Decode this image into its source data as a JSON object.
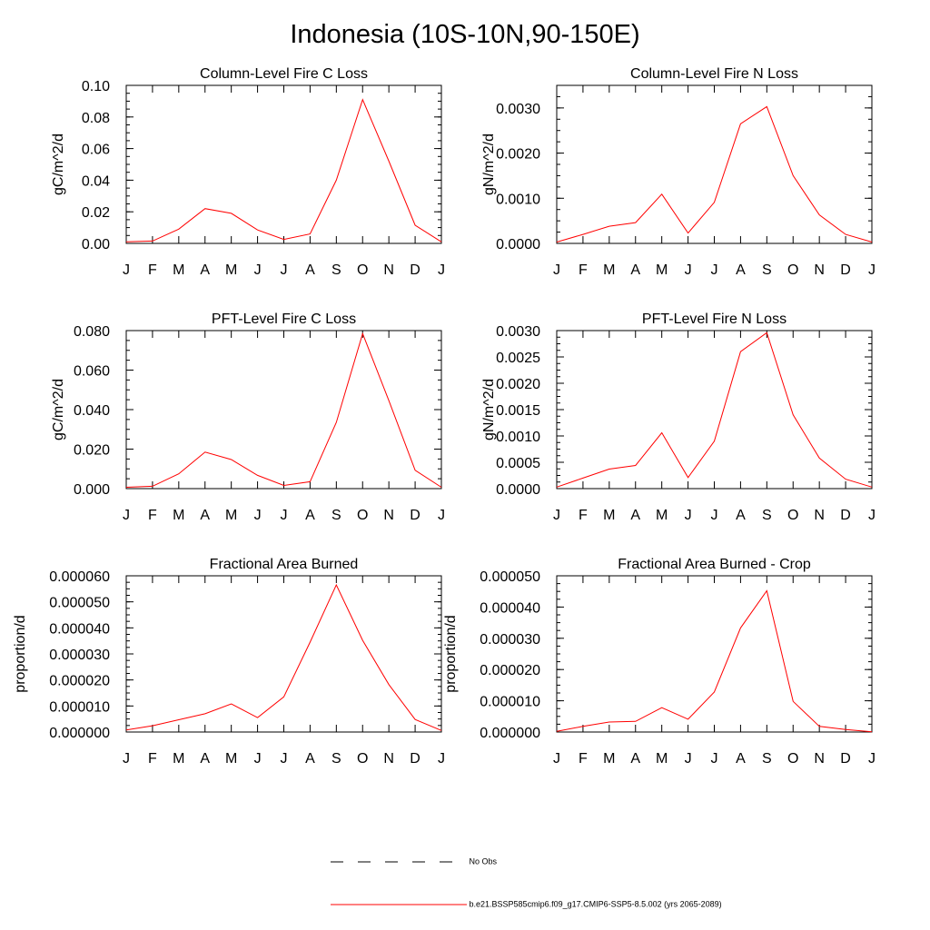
{
  "title": "Indonesia (10S-10N,90-150E)",
  "chart_data": [
    {
      "type": "line",
      "title": "Column-Level Fire C Loss",
      "ylabel": "gC/m^2/d",
      "categories": [
        "J",
        "F",
        "M",
        "A",
        "M",
        "J",
        "J",
        "A",
        "S",
        "O",
        "N",
        "D",
        "J"
      ],
      "ylim": [
        0,
        0.1
      ],
      "yticks": [
        "0.00",
        "0.02",
        "0.04",
        "0.06",
        "0.08",
        "0.10"
      ],
      "ytick_values": [
        0,
        0.02,
        0.04,
        0.06,
        0.08,
        0.1
      ],
      "series": [
        {
          "values": [
            0.001,
            0.0015,
            0.009,
            0.022,
            0.019,
            0.0085,
            0.0025,
            0.006,
            0.04,
            0.091,
            0.052,
            0.0115,
            0.001
          ]
        }
      ]
    },
    {
      "type": "line",
      "title": "Column-Level Fire N Loss",
      "ylabel": "gN/m^2/d",
      "categories": [
        "J",
        "F",
        "M",
        "A",
        "M",
        "J",
        "J",
        "A",
        "S",
        "O",
        "N",
        "D",
        "J"
      ],
      "ylim": [
        0,
        0.0035
      ],
      "yticks": [
        "0.0000",
        "0.0010",
        "0.0020",
        "0.0030"
      ],
      "ytick_values": [
        0,
        0.001,
        0.002,
        0.003
      ],
      "series": [
        {
          "values": [
            3e-05,
            0.0002,
            0.00038,
            0.00046,
            0.00109,
            0.00023,
            0.00091,
            0.00265,
            0.00303,
            0.0015,
            0.00063,
            0.0002,
            3e-05
          ]
        }
      ]
    },
    {
      "type": "line",
      "title": "PFT-Level Fire C Loss",
      "ylabel": "gC/m^2/d",
      "categories": [
        "J",
        "F",
        "M",
        "A",
        "M",
        "J",
        "J",
        "A",
        "S",
        "O",
        "N",
        "D",
        "J"
      ],
      "ylim": [
        0,
        0.08
      ],
      "yticks": [
        "0.000",
        "0.020",
        "0.040",
        "0.060",
        "0.080"
      ],
      "ytick_values": [
        0,
        0.02,
        0.04,
        0.06,
        0.08
      ],
      "series": [
        {
          "values": [
            0.0007,
            0.0012,
            0.0075,
            0.0185,
            0.0147,
            0.0067,
            0.0016,
            0.0035,
            0.0335,
            0.0785,
            0.0445,
            0.0093,
            0.0007
          ]
        }
      ]
    },
    {
      "type": "line",
      "title": "PFT-Level Fire N Loss",
      "ylabel": "gN/m^2/d",
      "categories": [
        "J",
        "F",
        "M",
        "A",
        "M",
        "J",
        "J",
        "A",
        "S",
        "O",
        "N",
        "D",
        "J"
      ],
      "ylim": [
        0,
        0.003
      ],
      "yticks": [
        "0.0000",
        "0.0005",
        "0.0010",
        "0.0015",
        "0.0020",
        "0.0025",
        "0.0030"
      ],
      "ytick_values": [
        0,
        0.0005,
        0.001,
        0.0015,
        0.002,
        0.0025,
        0.003
      ],
      "series": [
        {
          "values": [
            3e-05,
            0.0002,
            0.00037,
            0.00044,
            0.00106,
            0.00021,
            0.0009,
            0.0026,
            0.00296,
            0.0014,
            0.00058,
            0.00018,
            3e-05
          ]
        }
      ]
    },
    {
      "type": "line",
      "title": "Fractional Area Burned",
      "ylabel": "proportion/d",
      "categories": [
        "J",
        "F",
        "M",
        "A",
        "M",
        "J",
        "J",
        "A",
        "S",
        "O",
        "N",
        "D",
        "J"
      ],
      "ylim": [
        0,
        6e-05
      ],
      "yticks": [
        "0.000000",
        "0.000010",
        "0.000020",
        "0.000030",
        "0.000040",
        "0.000050",
        "0.000060"
      ],
      "ytick_values": [
        0,
        1e-05,
        2e-05,
        3e-05,
        4e-05,
        5e-05,
        6e-05
      ],
      "series": [
        {
          "values": [
            8e-07,
            2.4e-06,
            4.7e-06,
            7e-06,
            1.08e-05,
            5.5e-06,
            1.35e-05,
            3.45e-05,
            5.65e-05,
            3.52e-05,
            1.82e-05,
            4.8e-06,
            6e-07
          ]
        }
      ]
    },
    {
      "type": "line",
      "title": "Fractional Area Burned - Crop",
      "ylabel": "proportion/d",
      "categories": [
        "J",
        "F",
        "M",
        "A",
        "M",
        "J",
        "J",
        "A",
        "S",
        "O",
        "N",
        "D",
        "J"
      ],
      "ylim": [
        0,
        5e-05
      ],
      "yticks": [
        "0.000000",
        "0.000010",
        "0.000020",
        "0.000030",
        "0.000040",
        "0.000050"
      ],
      "ytick_values": [
        0,
        1e-05,
        2e-05,
        3e-05,
        4e-05,
        5e-05
      ],
      "series": [
        {
          "values": [
            2e-07,
            1.8e-06,
            3.2e-06,
            3.4e-06,
            7.8e-06,
            4.1e-06,
            1.28e-05,
            3.33e-05,
            4.52e-05,
            9.8e-06,
            1.8e-06,
            8e-07,
            1e-07
          ]
        }
      ]
    }
  ],
  "legend": [
    {
      "label": "No Obs",
      "style": "dashed",
      "color": "#000000"
    },
    {
      "label": "b.e21.BSSP585cmip6.f09_g17.CMIP6-SSP5-8.5.002 (yrs 2065-2089)",
      "style": "solid",
      "color": "#ff0000"
    }
  ],
  "colors": {
    "series": "#ff0000",
    "axis": "#000000"
  }
}
